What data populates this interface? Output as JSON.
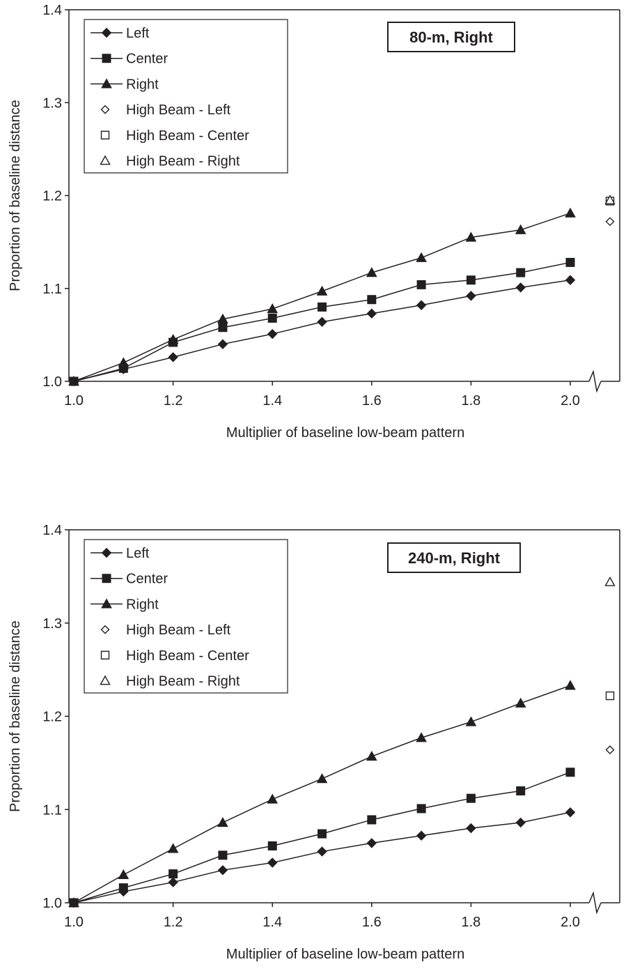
{
  "chart_data": [
    {
      "type": "line",
      "title": "80-m, Right",
      "xlabel": "Multiplier of baseline low-beam pattern",
      "ylabel": "Proportion of baseline distance",
      "x": [
        1.0,
        1.1,
        1.2,
        1.3,
        1.4,
        1.5,
        1.6,
        1.7,
        1.8,
        1.9,
        2.0
      ],
      "xlim": [
        1.0,
        2.0
      ],
      "ylim": [
        1.0,
        1.4
      ],
      "xticks": [
        "1.0",
        "1.2",
        "1.4",
        "1.6",
        "1.8",
        "2.0"
      ],
      "yticks": [
        "1.0",
        "1.1",
        "1.2",
        "1.3",
        "1.4"
      ],
      "grid": false,
      "legend_position": "top-left",
      "series": [
        {
          "name": "Left",
          "marker": "diamond",
          "filled": true,
          "values": [
            1.0,
            1.013,
            1.026,
            1.04,
            1.051,
            1.064,
            1.073,
            1.082,
            1.092,
            1.101,
            1.109
          ]
        },
        {
          "name": "Center",
          "marker": "square",
          "filled": true,
          "values": [
            1.0,
            1.014,
            1.042,
            1.058,
            1.068,
            1.08,
            1.088,
            1.104,
            1.109,
            1.117,
            1.128
          ]
        },
        {
          "name": "Right",
          "marker": "triangle",
          "filled": true,
          "values": [
            1.0,
            1.02,
            1.045,
            1.067,
            1.078,
            1.097,
            1.117,
            1.133,
            1.155,
            1.163,
            1.181
          ]
        }
      ],
      "high_beam": [
        {
          "name": "High Beam - Left",
          "marker": "diamond",
          "filled": false,
          "value": 1.172
        },
        {
          "name": "High Beam - Center",
          "marker": "square",
          "filled": false,
          "value": 1.194
        },
        {
          "name": "High Beam - Right",
          "marker": "triangle",
          "filled": false,
          "value": 1.195
        }
      ]
    },
    {
      "type": "line",
      "title": "240-m, Right",
      "xlabel": "Multiplier of baseline low-beam pattern",
      "ylabel": "Proportion of baseline distance",
      "x": [
        1.0,
        1.1,
        1.2,
        1.3,
        1.4,
        1.5,
        1.6,
        1.7,
        1.8,
        1.9,
        2.0
      ],
      "xlim": [
        1.0,
        2.0
      ],
      "ylim": [
        1.0,
        1.4
      ],
      "xticks": [
        "1.0",
        "1.2",
        "1.4",
        "1.6",
        "1.8",
        "2.0"
      ],
      "yticks": [
        "1.0",
        "1.1",
        "1.2",
        "1.3",
        "1.4"
      ],
      "grid": false,
      "legend_position": "top-left",
      "series": [
        {
          "name": "Left",
          "marker": "diamond",
          "filled": true,
          "values": [
            1.0,
            1.012,
            1.022,
            1.035,
            1.043,
            1.055,
            1.064,
            1.072,
            1.08,
            1.086,
            1.097
          ]
        },
        {
          "name": "Center",
          "marker": "square",
          "filled": true,
          "values": [
            1.0,
            1.016,
            1.031,
            1.051,
            1.061,
            1.074,
            1.089,
            1.101,
            1.112,
            1.12,
            1.14
          ]
        },
        {
          "name": "Right",
          "marker": "triangle",
          "filled": true,
          "values": [
            1.0,
            1.03,
            1.058,
            1.086,
            1.111,
            1.133,
            1.157,
            1.177,
            1.194,
            1.214,
            1.233
          ]
        }
      ],
      "high_beam": [
        {
          "name": "High Beam - Left",
          "marker": "diamond",
          "filled": false,
          "value": 1.164
        },
        {
          "name": "High Beam - Center",
          "marker": "square",
          "filled": false,
          "value": 1.222
        },
        {
          "name": "High Beam - Right",
          "marker": "triangle",
          "filled": false,
          "value": 1.344
        }
      ]
    }
  ]
}
